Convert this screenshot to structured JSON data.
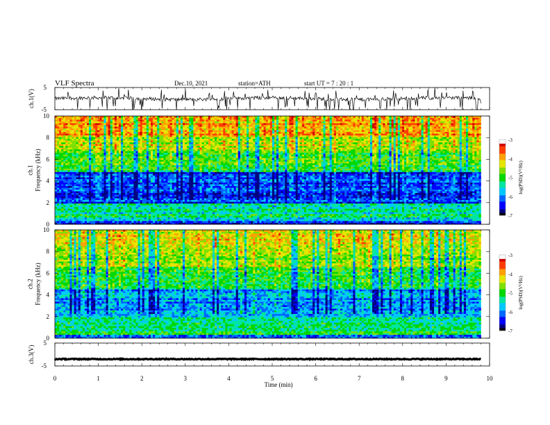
{
  "header": {
    "title": "VLF  Spectra",
    "date": "Dec.10, 2021",
    "station": "station=ATH",
    "start": "start  UT  =    7  : 20 : 1"
  },
  "chart_data": [
    {
      "type": "line",
      "panel": "ch1-waveform",
      "ylabel": "ch.1(V)",
      "ytick_labels": [
        "5",
        "-5"
      ],
      "ylim": [
        -5,
        5
      ],
      "xlim": [
        0,
        10
      ],
      "data_extent_min": [
        0,
        9.8
      ],
      "trace": "noisy waveform around 0 V with frequent negative spikes",
      "color": "#000000"
    },
    {
      "type": "heatmap",
      "panel": "ch1-spectrogram",
      "ylabel": "ch.1\nFrequency  (kHz)",
      "ytick_labels": [
        "0",
        "2",
        "4",
        "6",
        "8",
        "10"
      ],
      "ylim": [
        0,
        10
      ],
      "xlim": [
        0,
        10
      ],
      "data_extent_min": [
        0,
        9.8
      ],
      "colorbar": {
        "label": "log(PSD)(V²/Hz)",
        "ticks": [
          "-3",
          "-4",
          "-5",
          "-6",
          "-7"
        ],
        "range": [
          -7,
          -3
        ]
      },
      "bands": [
        {
          "f": [
            0,
            0.3
          ],
          "level": -6.4
        },
        {
          "f": [
            0.3,
            2.0
          ],
          "level": -5.4
        },
        {
          "f": [
            2.0,
            4.8
          ],
          "level": -6.3
        },
        {
          "f": [
            4.8,
            6.8
          ],
          "level": -5.0
        },
        {
          "f": [
            6.8,
            8.0
          ],
          "level": -4.5
        },
        {
          "f": [
            8.0,
            10.0
          ],
          "level": -4.0
        }
      ]
    },
    {
      "type": "heatmap",
      "panel": "ch2-spectrogram",
      "ylabel": "ch.2\nFrequency  (kHz)",
      "ytick_labels": [
        "0",
        "2",
        "4",
        "6",
        "8",
        "10"
      ],
      "ylim": [
        0,
        10
      ],
      "xlim": [
        0,
        10
      ],
      "data_extent_min": [
        0,
        9.8
      ],
      "colorbar": {
        "label": "log(PSD)(V²/Hz)",
        "ticks": [
          "-3",
          "-4",
          "-5",
          "-6",
          "-7"
        ],
        "range": [
          -7,
          -3
        ]
      },
      "bands": [
        {
          "f": [
            0,
            0.3
          ],
          "level": -6.0
        },
        {
          "f": [
            0.3,
            2.0
          ],
          "level": -5.2
        },
        {
          "f": [
            2.0,
            4.5
          ],
          "level": -5.9
        },
        {
          "f": [
            4.5,
            6.5
          ],
          "level": -5.0
        },
        {
          "f": [
            6.5,
            8.5
          ],
          "level": -4.6
        },
        {
          "f": [
            8.5,
            10.0
          ],
          "level": -4.3
        }
      ]
    },
    {
      "type": "line",
      "panel": "ch3-waveform",
      "ylabel": "ch.3(V)",
      "ytick_labels": [
        "5",
        "-5"
      ],
      "ylim": [
        -5,
        5
      ],
      "xlim": [
        0,
        10
      ],
      "data_extent_min": [
        0,
        9.8
      ],
      "trace": "flat thick trace near -2 V",
      "level": -2,
      "color": "#000000"
    }
  ],
  "x_axis": {
    "label": "Time  (min)",
    "tick_labels": [
      "0",
      "1",
      "2",
      "3",
      "4",
      "5",
      "6",
      "7",
      "8",
      "9",
      "10"
    ]
  },
  "colormap": [
    "#000000",
    "#000080",
    "#0000ff",
    "#0066ff",
    "#00c8ff",
    "#00e6a0",
    "#00d800",
    "#7fe000",
    "#e6e600",
    "#ffa000",
    "#ff3c00",
    "#d00000",
    "#ffffff"
  ]
}
